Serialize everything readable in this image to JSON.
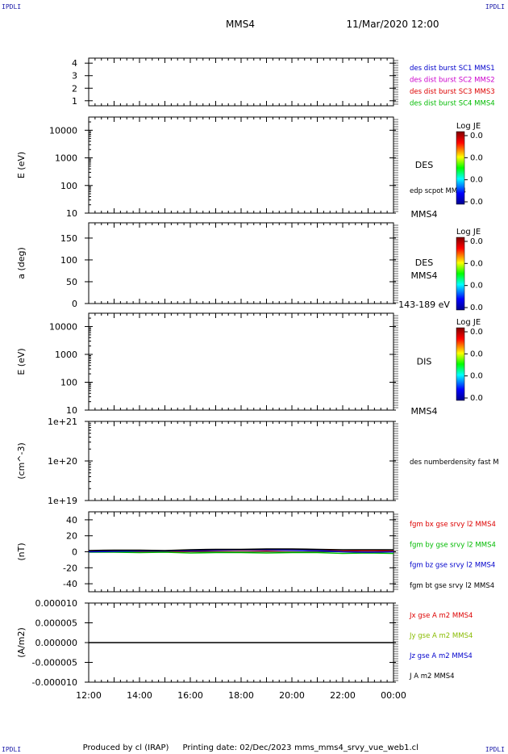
{
  "header": {
    "corner_label": "IPDLI",
    "spacecraft": "MMS4",
    "datetime": "11/Mar/2020 12:00"
  },
  "footer": {
    "produced_by": "Produced by cl (IRAP)",
    "printing_date": "Printing date: 02/Dec/2023",
    "filename": "mms_mms4_srvy_vue_web1.cl"
  },
  "colors": {
    "mms1": "#0000cc",
    "mms2": "#cc00cc",
    "mms3": "#dd0000",
    "mms4": "#00bb00",
    "black": "#000000"
  },
  "x_axis": {
    "range_hours": [
      12,
      24
    ],
    "tick_hours": [
      12,
      14,
      16,
      18,
      20,
      22,
      24
    ],
    "tick_labels": [
      "12:00",
      "14:00",
      "16:00",
      "18:00",
      "20:00",
      "22:00",
      "00:00"
    ]
  },
  "chart_data": [
    {
      "type": "line",
      "ylabel": "",
      "ylim": [
        0.6,
        4.4
      ],
      "yticks": [
        "4",
        "3",
        "2",
        "1"
      ],
      "ytick_values": [
        4,
        3,
        2,
        1
      ],
      "legend": [
        {
          "label": "des dist burst SC1 MMS1",
          "color": "#0000cc"
        },
        {
          "label": "des dist burst SC2 MMS2",
          "color": "#cc00cc"
        },
        {
          "label": "des dist burst SC3 MMS3",
          "color": "#dd0000"
        },
        {
          "label": "des dist burst SC4 MMS4",
          "color": "#00bb00"
        }
      ]
    },
    {
      "type": "heatmap",
      "ylabel": "E (eV)",
      "yscale": "log",
      "ylim": [
        10,
        30000
      ],
      "yticks": [
        "10000",
        "1000",
        "100",
        "10"
      ],
      "ytick_values": [
        10000,
        1000,
        100,
        10
      ],
      "instrument": "DES",
      "right_note": "edp scpot MMS4",
      "bottom_note": "MMS4",
      "colorbar": {
        "title": "Log JE",
        "labels": [
          "0.0",
          "0.0",
          "0.0",
          "0.0"
        ]
      }
    },
    {
      "type": "heatmap",
      "ylabel": "a (deg)",
      "ylim": [
        0,
        185
      ],
      "yticks": [
        "150",
        "100",
        "50",
        "0"
      ],
      "ytick_values": [
        150,
        100,
        50,
        0
      ],
      "instrument": "DES",
      "right_note": "MMS4",
      "bottom_note": "143-189 eV",
      "colorbar": {
        "title": "Log JE",
        "labels": [
          "0.0",
          "0.0",
          "0.0",
          "0.0"
        ]
      }
    },
    {
      "type": "heatmap",
      "ylabel": "E (eV)",
      "yscale": "log",
      "ylim": [
        10,
        30000
      ],
      "yticks": [
        "10000",
        "1000",
        "100",
        "10"
      ],
      "ytick_values": [
        10000,
        1000,
        100,
        10
      ],
      "instrument": "DIS",
      "bottom_note": "MMS4",
      "colorbar": {
        "title": "Log JE",
        "labels": [
          "0.0",
          "0.0",
          "0.0",
          "0.0"
        ]
      }
    },
    {
      "type": "line",
      "ylabel": "(cm^-3)",
      "yscale": "log",
      "ylim": [
        1e+19,
        1e+21
      ],
      "yticks": [
        "1e+21",
        "1e+20",
        "1e+19"
      ],
      "ytick_values": [
        1e+21,
        1e+20,
        1e+19
      ],
      "legend": [
        {
          "label": "des numberdensity fast M",
          "color": "#000000"
        }
      ]
    },
    {
      "type": "line",
      "ylabel": "(nT)",
      "ylim": [
        -50,
        50
      ],
      "yticks": [
        "40",
        "20",
        "0",
        "-20",
        "-40"
      ],
      "ytick_values": [
        40,
        20,
        0,
        -20,
        -40
      ],
      "legend": [
        {
          "label": "fgm bx gse srvy l2 MMS4",
          "color": "#dd0000"
        },
        {
          "label": "fgm by gse srvy l2 MMS4",
          "color": "#00bb00"
        },
        {
          "label": "fgm bz gse srvy l2 MMS4",
          "color": "#0000cc"
        },
        {
          "label": "fgm bt gse srvy l2 MMS4",
          "color": "#000000"
        }
      ],
      "series": [
        {
          "name": "fgm bx gse srvy l2 MMS4",
          "color": "#dd0000",
          "hours": [
            12,
            13,
            14,
            15,
            16,
            17,
            18,
            19,
            20,
            21,
            22,
            23,
            24
          ],
          "values": [
            0.5,
            1,
            0.5,
            0,
            1,
            1.5,
            2,
            1.5,
            2,
            1.5,
            1,
            1.5,
            1
          ]
        },
        {
          "name": "fgm by gse srvy l2 MMS4",
          "color": "#00bb00",
          "hours": [
            12,
            13,
            14,
            15,
            16,
            17,
            18,
            19,
            20,
            21,
            22,
            23,
            24
          ],
          "values": [
            -0.5,
            -0.5,
            -1,
            -0.5,
            -1.5,
            -1,
            -1,
            -1.5,
            -1,
            -1,
            -2,
            -1.5,
            -2
          ]
        },
        {
          "name": "fgm bz gse srvy l2 MMS4",
          "color": "#0000cc",
          "hours": [
            12,
            13,
            14,
            15,
            16,
            17,
            18,
            19,
            20,
            21,
            22,
            23,
            24
          ],
          "values": [
            0,
            0.5,
            1,
            1,
            1.5,
            2,
            2.5,
            2.5,
            2,
            1.5,
            0,
            -0.5,
            0
          ]
        },
        {
          "name": "fgm bt gse srvy l2 MMS4",
          "color": "#000000",
          "hours": [
            12,
            13,
            14,
            15,
            16,
            17,
            18,
            19,
            20,
            21,
            22,
            23,
            24
          ],
          "values": [
            1.5,
            2,
            2,
            1.5,
            2.5,
            3,
            3,
            3.5,
            3.5,
            3,
            2.5,
            2.5,
            2.5
          ]
        }
      ]
    },
    {
      "type": "line",
      "ylabel": "(A/m2)",
      "ylim": [
        -1e-05,
        1e-05
      ],
      "yticks": [
        "0.000010",
        "0.000005",
        "0.000000",
        "-0.000005",
        "-0.000010"
      ],
      "ytick_values": [
        1e-05,
        5e-06,
        0,
        -5e-06,
        -1e-05
      ],
      "legend": [
        {
          "label": "Jx gse A m2 MMS4",
          "color": "#dd0000"
        },
        {
          "label": "Jy gse A m2 MMS4",
          "color": "#88bb00"
        },
        {
          "label": "Jz gse A m2 MMS4",
          "color": "#0000cc"
        },
        {
          "label": "J A m2 MMS4",
          "color": "#000000"
        }
      ],
      "series": [
        {
          "name": "J A m2 MMS4",
          "color": "#000000",
          "hours": [
            12,
            13.5,
            14,
            16,
            18,
            20,
            21.5,
            22,
            23,
            24
          ],
          "values": [
            0,
            0,
            0,
            0,
            0,
            0,
            0,
            0,
            0,
            0
          ]
        }
      ]
    }
  ]
}
